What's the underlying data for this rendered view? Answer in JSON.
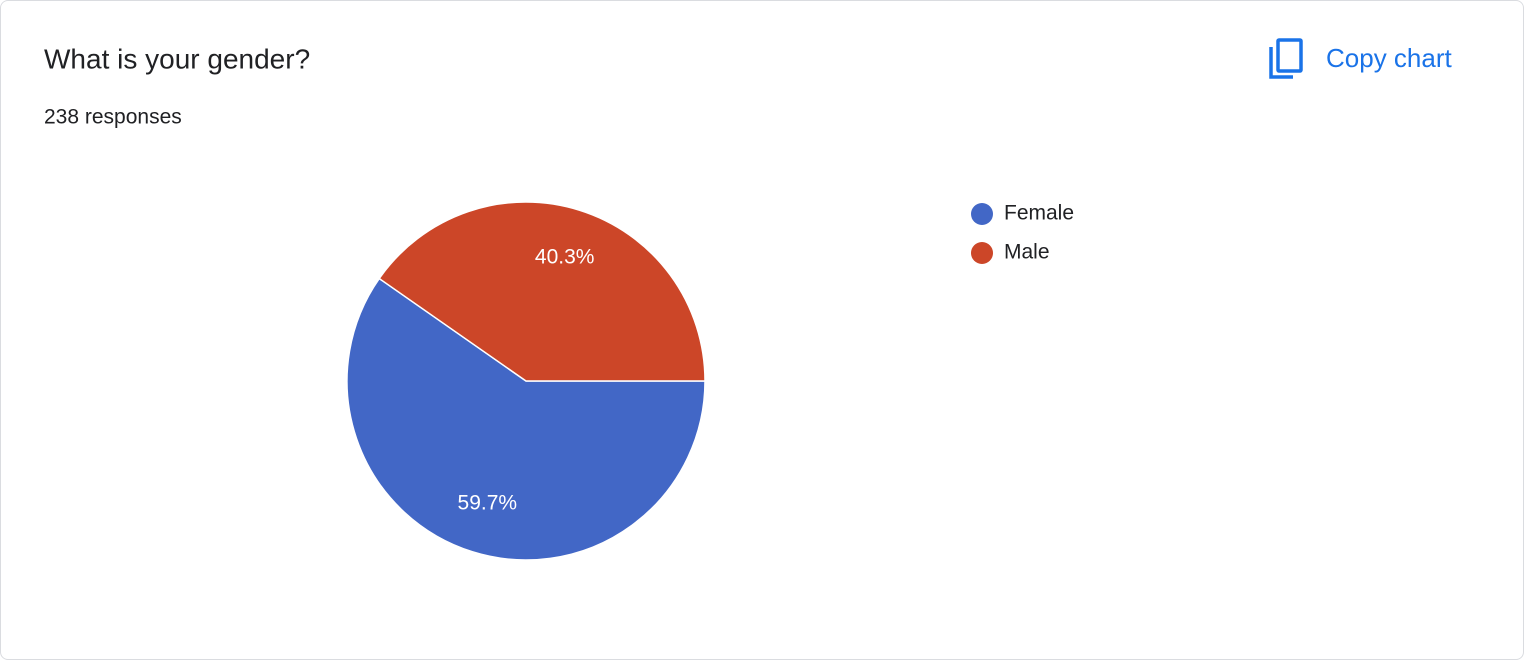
{
  "chart_data": {
    "type": "pie",
    "title": "What is your gender?",
    "subtitle": "238 responses",
    "categories": [
      "Female",
      "Male"
    ],
    "values": [
      59.7,
      40.3
    ],
    "value_labels": [
      "59.7%",
      "40.3%"
    ],
    "colors": [
      "#4267c6",
      "#cc4628"
    ],
    "legend": "right"
  },
  "button_label": "Copy chart"
}
